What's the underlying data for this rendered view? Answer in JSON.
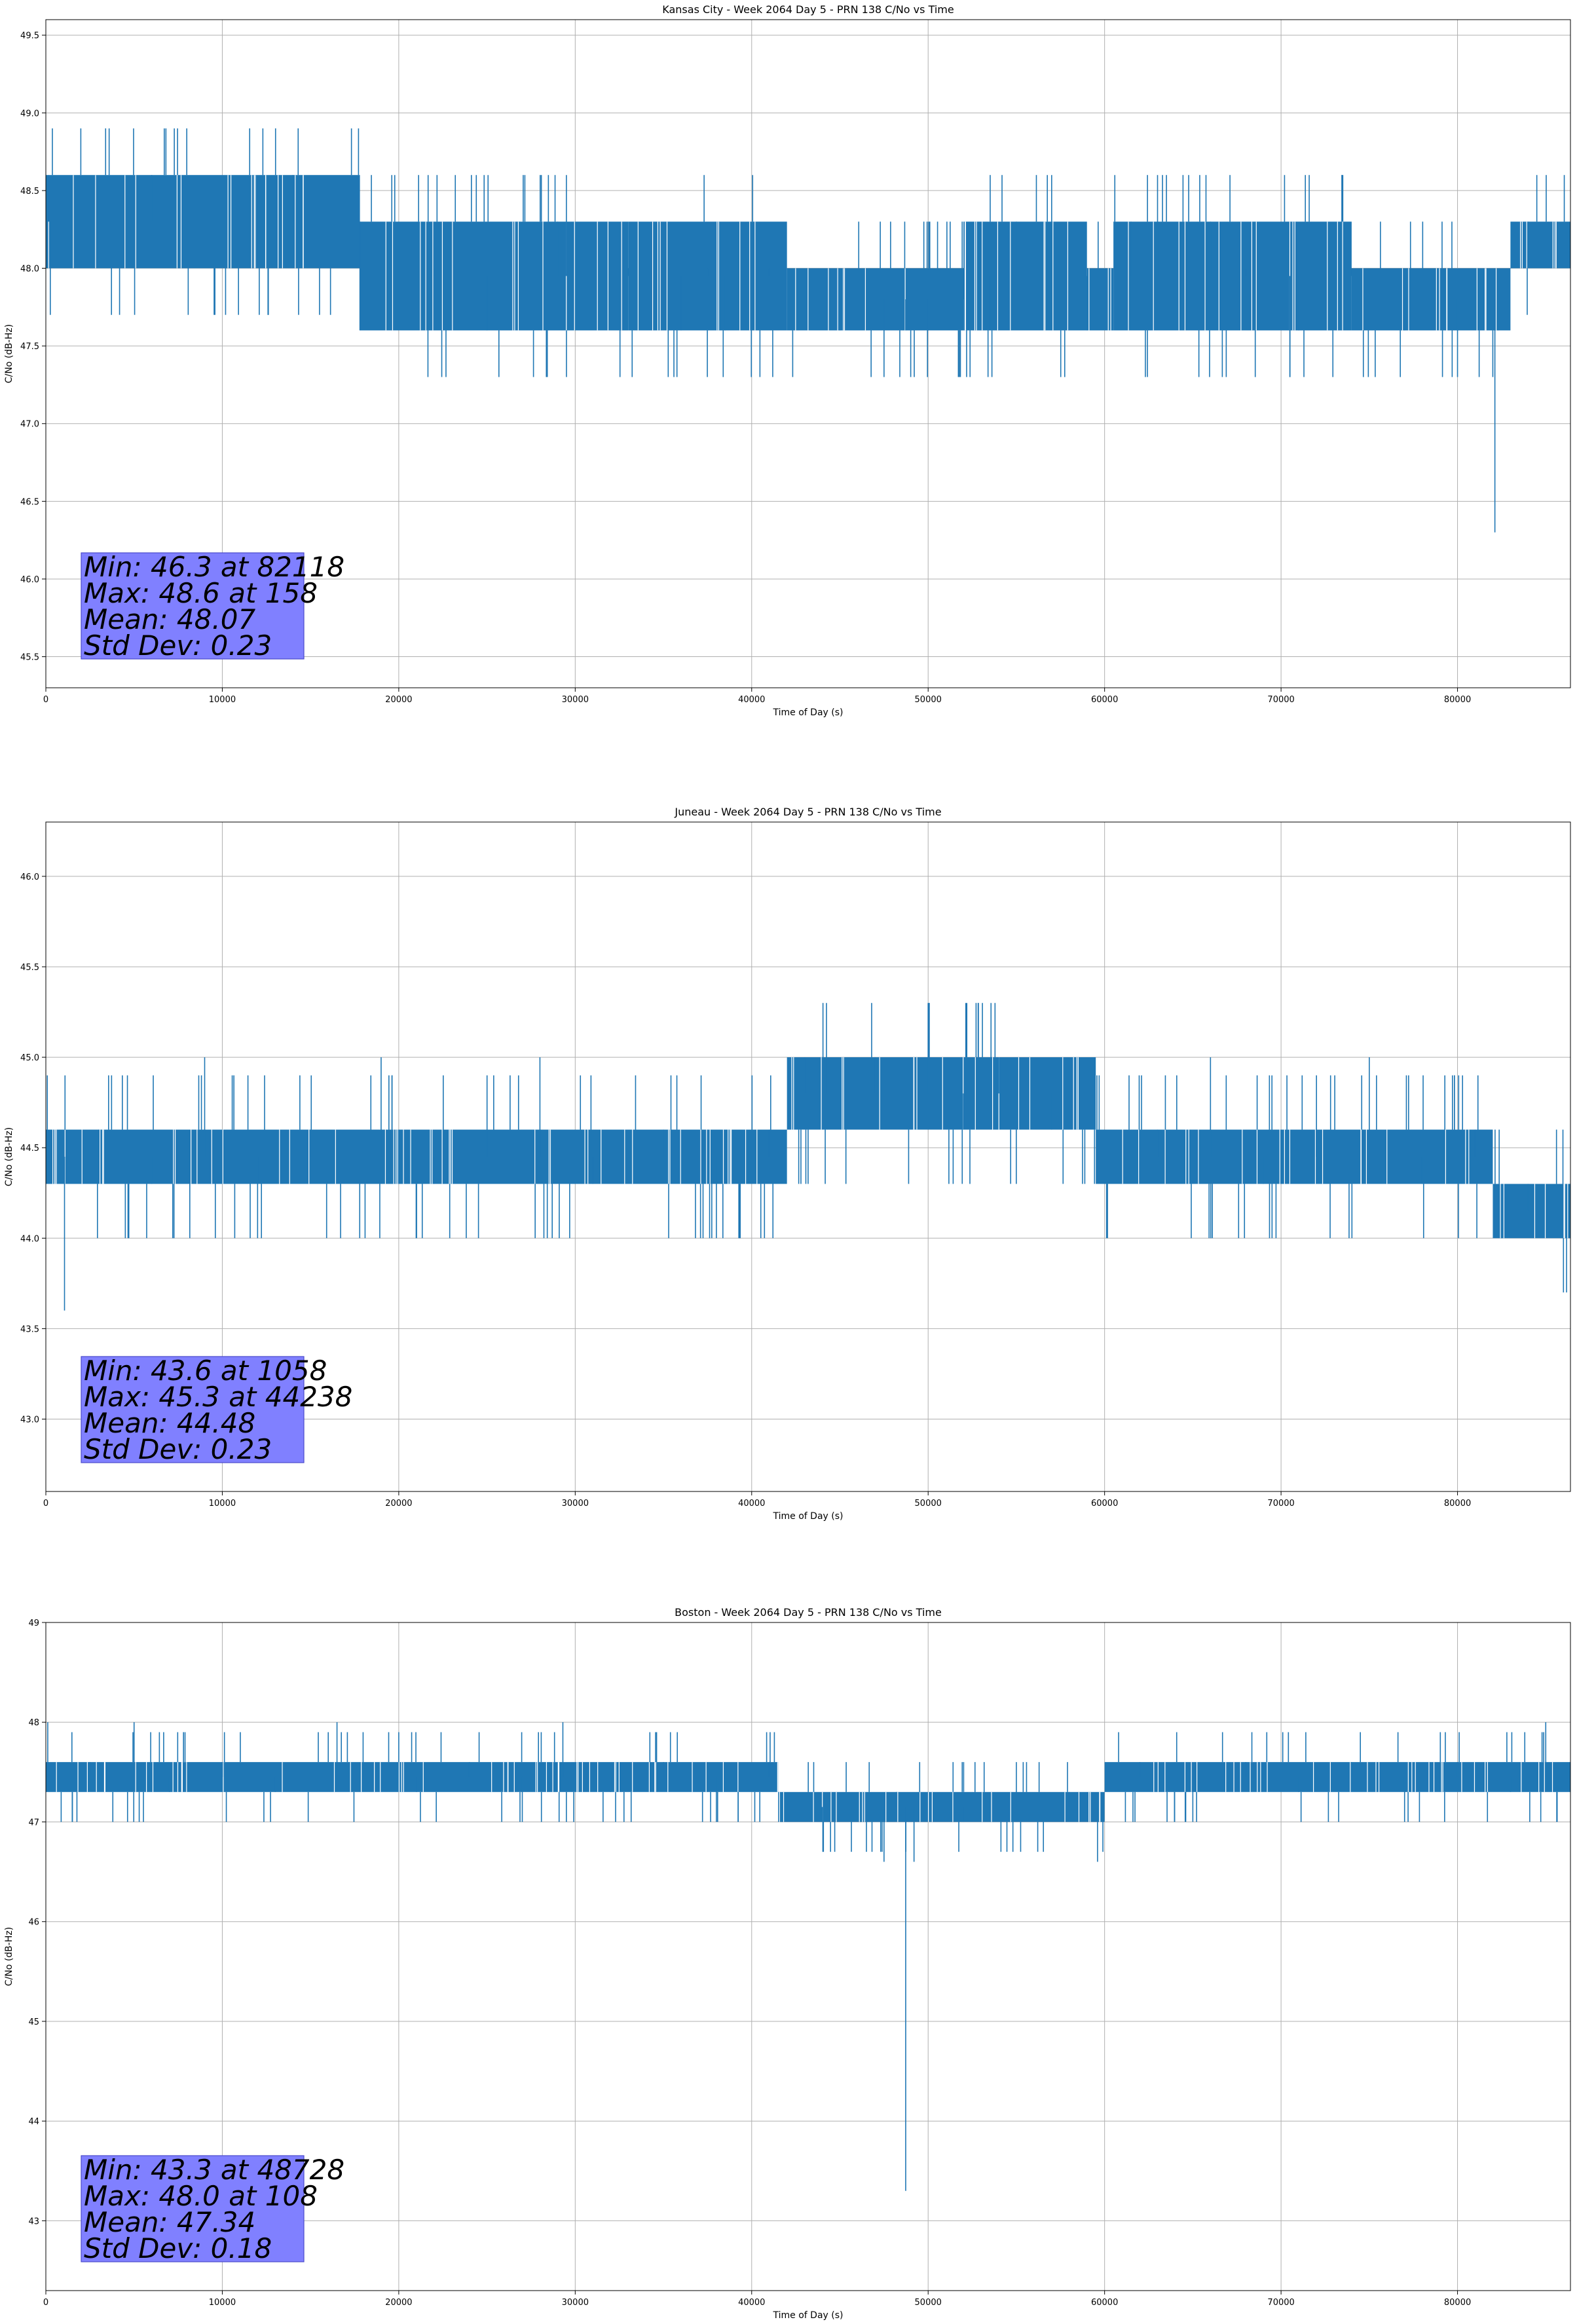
{
  "figure": {
    "series_color": "#1f77b4",
    "stats_box_color": "#8080ff",
    "grid": true
  },
  "chart_data": [
    {
      "type": "line",
      "title": "Kansas City - Week 2064 Day 5 - PRN 138 C/No vs Time",
      "xlabel": "Time of Day (s)",
      "ylabel": "C/No (dB-Hz)",
      "xlim": [
        0,
        86400
      ],
      "ylim": [
        45.3,
        49.6
      ],
      "xticks": [
        0,
        10000,
        20000,
        30000,
        40000,
        50000,
        60000,
        70000,
        80000
      ],
      "yticks": [
        "45.5",
        "46.0",
        "46.5",
        "47.0",
        "47.5",
        "48.0",
        "48.5",
        "49.0",
        "49.5"
      ],
      "series": [
        {
          "x": [
            0,
            158,
            2000,
            6000,
            10000,
            14000,
            17700,
            17800,
            22000,
            25000,
            29000,
            29500,
            33000,
            36000,
            37500,
            38500,
            41000,
            45000,
            47500,
            48728,
            50000,
            52000,
            53500,
            55000,
            57000,
            59000,
            60000,
            61500,
            63000,
            66000,
            68000,
            70500,
            71000,
            74000,
            77000,
            80000,
            82118,
            82300,
            84000,
            86400
          ],
          "y": [
            48.0,
            48.6,
            48.3,
            48.6,
            48.3,
            48.6,
            48.3,
            47.6,
            48.0,
            47.6,
            48.3,
            48.6,
            48.0,
            47.6,
            48.0,
            47.6,
            48.0,
            47.6,
            47.3,
            47.6,
            47.6,
            48.0,
            47.6,
            48.3,
            48.6,
            47.6,
            48.0,
            48.3,
            48.6,
            48.3,
            48.0,
            47.3,
            47.6,
            48.0,
            47.6,
            47.3,
            46.3,
            47.6,
            48.3,
            48.0
          ],
          "band_segments": [
            {
              "from": 0,
              "to": 17800,
              "low": 48.0,
              "high": 48.6
            },
            {
              "from": 17800,
              "to": 33000,
              "low": 47.6,
              "high": 48.3
            },
            {
              "from": 33000,
              "to": 42000,
              "low": 47.6,
              "high": 48.3
            },
            {
              "from": 42000,
              "to": 52000,
              "low": 47.6,
              "high": 48.0
            },
            {
              "from": 52000,
              "to": 59000,
              "low": 47.6,
              "high": 48.3
            },
            {
              "from": 59000,
              "to": 60500,
              "low": 47.6,
              "high": 48.0
            },
            {
              "from": 60500,
              "to": 74000,
              "low": 47.6,
              "high": 48.3
            },
            {
              "from": 74000,
              "to": 83000,
              "low": 47.6,
              "high": 48.0
            },
            {
              "from": 83000,
              "to": 86400,
              "low": 48.0,
              "high": 48.3
            }
          ]
        }
      ],
      "stats": [
        "Min: 46.3 at 82118",
        "Max: 48.6 at 158",
        "Mean: 48.07",
        "Std Dev: 0.23"
      ]
    },
    {
      "type": "line",
      "title": "Juneau - Week 2064 Day 5 - PRN 138 C/No vs Time",
      "xlabel": "Time of Day (s)",
      "ylabel": "C/No (dB-Hz)",
      "xlim": [
        0,
        86400
      ],
      "ylim": [
        42.6,
        46.3
      ],
      "xticks": [
        0,
        10000,
        20000,
        30000,
        40000,
        50000,
        60000,
        70000,
        80000
      ],
      "yticks": [
        "43.0",
        "43.5",
        "44.0",
        "44.5",
        "45.0",
        "45.5",
        "46.0"
      ],
      "series": [
        {
          "x": [
            0,
            1058,
            3000,
            6000,
            9000,
            12000,
            15000,
            19000,
            22000,
            25000,
            28000,
            31000,
            35000,
            38000,
            41000,
            43000,
            44238,
            47000,
            50000,
            52000,
            54000,
            57000,
            60000,
            63000,
            66000,
            69000,
            72000,
            75000,
            78000,
            81000,
            82500,
            84000,
            86400
          ],
          "y": [
            44.3,
            43.6,
            44.6,
            44.3,
            45.0,
            44.0,
            44.6,
            45.0,
            44.3,
            44.6,
            45.0,
            44.3,
            44.6,
            44.0,
            44.6,
            45.0,
            45.3,
            45.0,
            45.3,
            44.6,
            45.0,
            44.6,
            44.3,
            44.6,
            45.0,
            44.3,
            44.6,
            45.0,
            44.3,
            44.6,
            44.0,
            44.3,
            44.3
          ],
          "band_segments": [
            {
              "from": 0,
              "to": 42000,
              "low": 44.3,
              "high": 44.6
            },
            {
              "from": 42000,
              "to": 59500,
              "low": 44.6,
              "high": 45.0
            },
            {
              "from": 59500,
              "to": 82000,
              "low": 44.3,
              "high": 44.6
            },
            {
              "from": 82000,
              "to": 86400,
              "low": 44.0,
              "high": 44.3
            }
          ]
        }
      ],
      "stats": [
        "Min: 43.6 at 1058",
        "Max: 45.3 at 44238",
        "Mean: 44.48",
        "Std Dev: 0.23"
      ]
    },
    {
      "type": "line",
      "title": "Boston - Week 2064 Day 5 - PRN 138 C/No vs Time",
      "xlabel": "Time of Day (s)",
      "ylabel": "C/No (dB-Hz)",
      "xlim": [
        0,
        86400
      ],
      "ylim": [
        42.3,
        49.0
      ],
      "xticks": [
        0,
        10000,
        20000,
        30000,
        40000,
        50000,
        60000,
        70000,
        80000
      ],
      "yticks": [
        "43",
        "44",
        "45",
        "46",
        "47",
        "48",
        "49"
      ],
      "series": [
        {
          "x": [
            0,
            108,
            2500,
            5000,
            7000,
            10000,
            13000,
            16500,
            18000,
            21000,
            24000,
            27000,
            29300,
            32000,
            35000,
            38000,
            41000,
            44000,
            47500,
            48200,
            48728,
            49200,
            52000,
            55000,
            58000,
            59600,
            62000,
            65000,
            68000,
            71000,
            74000,
            77000,
            80000,
            83000,
            85000,
            86400
          ],
          "y": [
            47.6,
            48.0,
            47.6,
            48.0,
            47.3,
            47.6,
            47.3,
            48.0,
            47.6,
            47.3,
            47.6,
            47.0,
            48.0,
            47.3,
            47.6,
            47.0,
            47.6,
            47.0,
            46.6,
            47.3,
            43.3,
            46.6,
            47.0,
            47.6,
            47.3,
            46.6,
            47.6,
            47.0,
            47.6,
            47.3,
            47.6,
            47.0,
            47.6,
            47.3,
            48.0,
            47.6
          ],
          "band_segments": [
            {
              "from": 0,
              "to": 41500,
              "low": 47.3,
              "high": 47.6
            },
            {
              "from": 41500,
              "to": 60000,
              "low": 47.0,
              "high": 47.3
            },
            {
              "from": 60000,
              "to": 86400,
              "low": 47.3,
              "high": 47.6
            }
          ]
        }
      ],
      "stats": [
        "Min: 43.3 at 48728",
        "Max: 48.0 at 108",
        "Mean: 47.34",
        "Std Dev: 0.18"
      ]
    }
  ]
}
